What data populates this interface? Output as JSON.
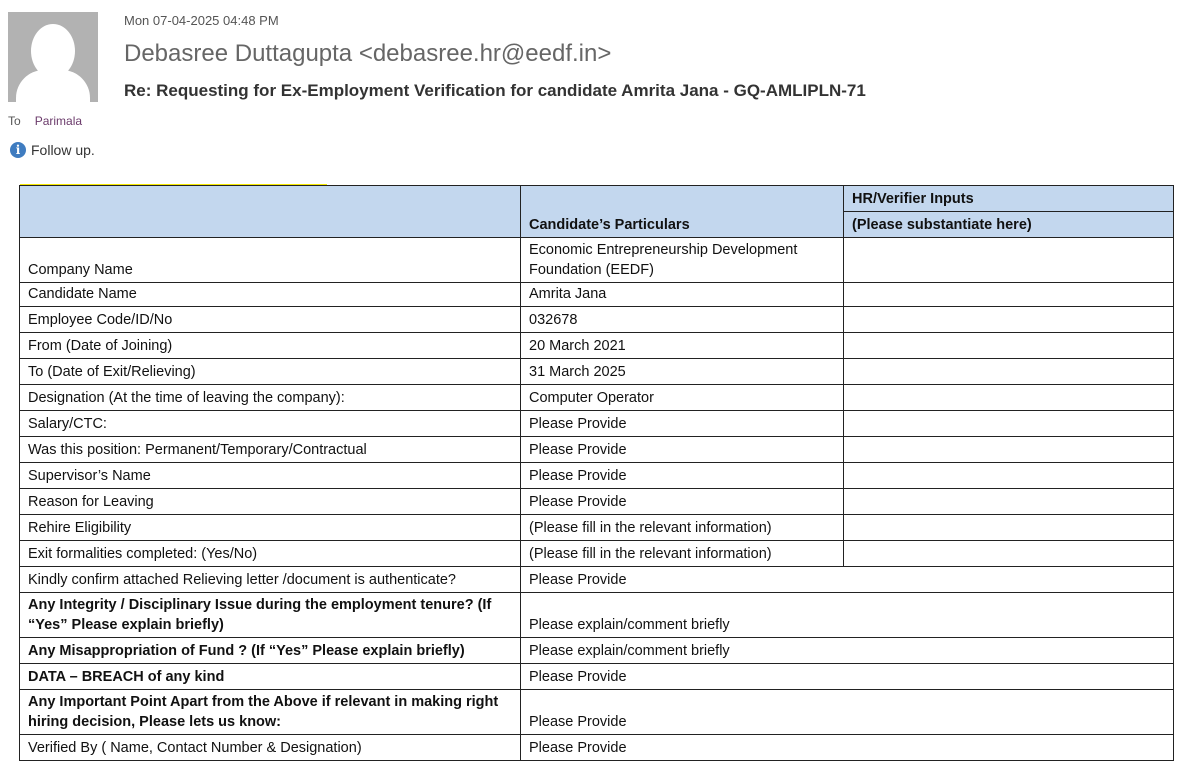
{
  "email": {
    "date": "Mon 07-04-2025 04:48 PM",
    "from": "Debasree Duttagupta <debasree.hr@eedf.in>",
    "subject": "Re: Requesting for Ex-Employment Verification for candidate Amrita Jana - GQ-AMLIPLN-71",
    "to_label": "To",
    "to": "Parimala",
    "follow_up": "Follow up.",
    "info_icon": "info-icon"
  },
  "table": {
    "header": {
      "col2": "Candidate’s Particulars",
      "col3_top": "HR/Verifier Inputs",
      "col3_bottom": "(Please substantiate here)"
    },
    "rows3": [
      {
        "label": "Company Name",
        "value": "Economic Entrepreneurship Development Foundation (EEDF)"
      },
      {
        "label": "Candidate Name",
        "value": "Amrita Jana"
      },
      {
        "label": "Employee Code/ID/No",
        "value": "032678"
      },
      {
        "label": "From (Date of Joining)",
        "value": "20 March 2021"
      },
      {
        "label": "To (Date of Exit/Relieving)",
        "value": "31 March 2025"
      },
      {
        "label": "Designation (At the time of leaving the company):",
        "value": "Computer Operator"
      },
      {
        "label": "Salary/CTC:",
        "value": "Please Provide"
      },
      {
        "label": "Was this position: Permanent/Temporary/Contractual",
        "value": "Please Provide"
      },
      {
        "label": "Supervisor’s Name",
        "value": "Please Provide"
      },
      {
        "label": "Reason for Leaving",
        "value": "Please Provide"
      },
      {
        "label": "Rehire Eligibility",
        "value": "(Please fill in the relevant information)"
      },
      {
        "label": "Exit formalities completed: (Yes/No)",
        "value": "(Please fill in the relevant information)"
      }
    ],
    "rows2": [
      {
        "label": "Kindly confirm attached Relieving letter /document is authenticate?",
        "value": "Please Provide",
        "bold": false
      },
      {
        "label": "Any Integrity / Disciplinary Issue during the employment tenure? (If “Yes” Please explain briefly)",
        "value": "Please explain/comment briefly",
        "bold": true
      },
      {
        "label": "Any Misappropriation of Fund ? (If “Yes” Please explain briefly)",
        "value": "Please explain/comment briefly",
        "bold": true
      },
      {
        "label": "DATA – BREACH of any kind",
        "value": "Please Provide",
        "bold": true
      },
      {
        "label": "Any Important Point Apart from the Above if relevant in making right hiring decision, Please lets us know:",
        "value": "Please Provide",
        "bold": true
      },
      {
        "label": "Verified By ( Name, Contact Number & Designation)",
        "value": "Please Provide",
        "bold": false
      }
    ]
  }
}
